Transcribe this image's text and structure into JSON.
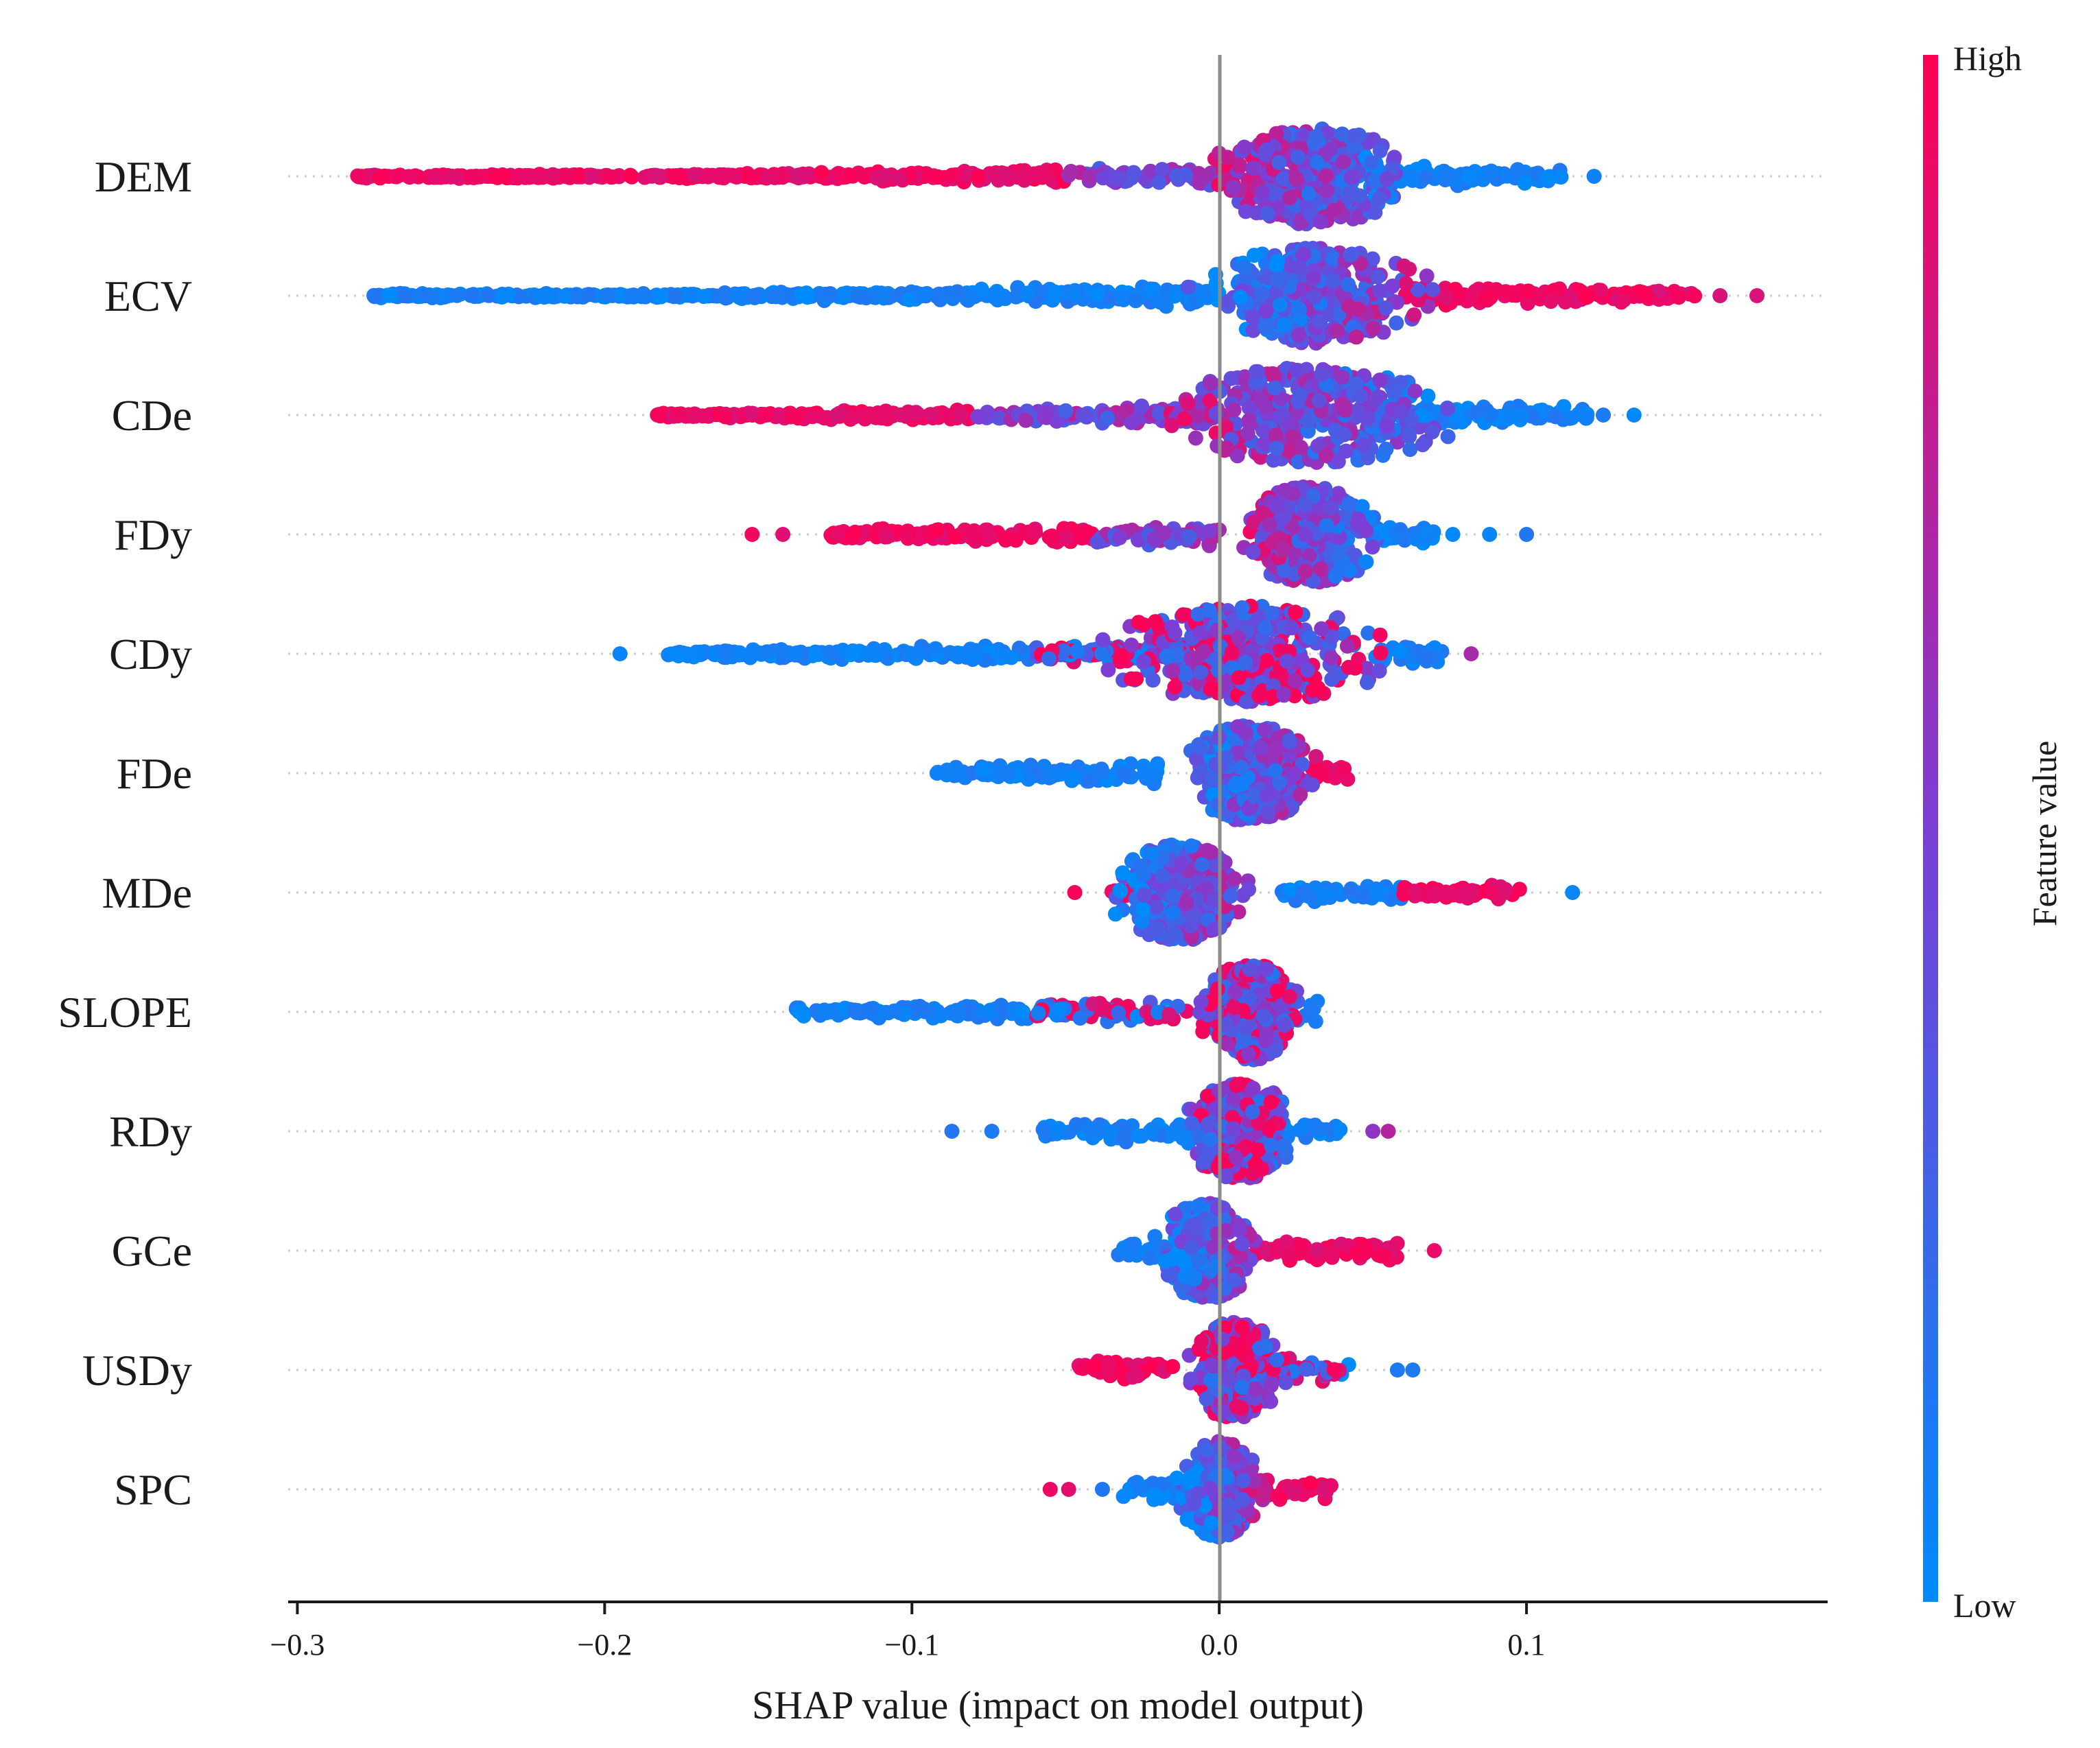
{
  "chart_data": {
    "type": "scatter",
    "subtype": "shap-beeswarm",
    "xlabel": "SHAP value (impact on model output)",
    "xlim": [
      -0.303,
      0.198
    ],
    "xticks": [
      {
        "value": -0.3,
        "label": "−0.3"
      },
      {
        "value": -0.2,
        "label": "−0.2"
      },
      {
        "value": -0.1,
        "label": "−0.1"
      },
      {
        "value": 0.0,
        "label": "0.0"
      },
      {
        "value": 0.1,
        "label": "0.1"
      }
    ],
    "colorbar": {
      "title": "Feature value",
      "high_label": "High",
      "low_label": "Low",
      "high_color": "#ff0052",
      "mid_color": "#7b3fd6",
      "low_color": "#008bfb"
    },
    "features": [
      {
        "name": "DEM",
        "min": -0.282,
        "max": 0.122,
        "center": 0.03,
        "tail_segments": [
          [
            -0.282,
            -0.05,
            "high"
          ],
          [
            -0.05,
            0.0,
            "mix"
          ],
          [
            0.04,
            0.112,
            "low"
          ]
        ],
        "outliers": [
          [
            0.122,
            "low"
          ]
        ],
        "body": [
          0.0,
          0.06
        ],
        "corr": -1
      },
      {
        "name": "ECV",
        "min": -0.278,
        "max": 0.175,
        "center": 0.03,
        "tail_segments": [
          [
            -0.278,
            -0.08,
            "low"
          ],
          [
            -0.08,
            0.0,
            "low"
          ],
          [
            0.06,
            0.155,
            "high"
          ]
        ],
        "outliers": [
          [
            0.163,
            "high"
          ],
          [
            0.175,
            "high"
          ]
        ],
        "body": [
          0.0,
          0.07
        ],
        "corr": 1
      },
      {
        "name": "CDe",
        "min": -0.183,
        "max": 0.135,
        "center": 0.03,
        "tail_segments": [
          [
            -0.183,
            -0.08,
            "high"
          ],
          [
            -0.08,
            0.0,
            "mix"
          ],
          [
            0.05,
            0.12,
            "low"
          ]
        ],
        "outliers": [
          [
            0.125,
            "low"
          ],
          [
            0.135,
            "low"
          ]
        ],
        "body": [
          -0.02,
          0.07
        ],
        "corr": -1
      },
      {
        "name": "FDy",
        "min": -0.152,
        "max": 0.1,
        "center": 0.03,
        "tail_segments": [
          [
            -0.128,
            -0.04,
            "high"
          ],
          [
            -0.04,
            0.0,
            "mix"
          ],
          [
            0.05,
            0.07,
            "low"
          ]
        ],
        "outliers": [
          [
            -0.152,
            "high"
          ],
          [
            -0.142,
            "high"
          ],
          [
            0.076,
            "low"
          ],
          [
            0.088,
            "low"
          ],
          [
            0.1,
            "low"
          ]
        ],
        "body": [
          0.01,
          0.055
        ],
        "corr": -1
      },
      {
        "name": "CDy",
        "min": -0.195,
        "max": 0.082,
        "center": 0.01,
        "tail_segments": [
          [
            -0.18,
            -0.06,
            "low"
          ],
          [
            -0.06,
            -0.01,
            "mixhi"
          ],
          [
            0.05,
            0.075,
            "low"
          ]
        ],
        "outliers": [
          [
            -0.195,
            "low"
          ],
          [
            0.082,
            "mix"
          ]
        ],
        "body": [
          -0.02,
          0.07
        ],
        "corr": 0
      },
      {
        "name": "FDe",
        "min": -0.092,
        "max": 0.042,
        "center": 0.01,
        "tail_segments": [
          [
            -0.092,
            -0.02,
            "low"
          ],
          [
            0.03,
            0.042,
            "high"
          ]
        ],
        "outliers": [],
        "body": [
          -0.01,
          0.03
        ],
        "corr": 1
      },
      {
        "name": "MDe",
        "min": -0.047,
        "max": 0.115,
        "center": -0.013,
        "tail_segments": [
          [
            -0.035,
            -0.02,
            "high"
          ],
          [
            0.02,
            0.06,
            "low"
          ],
          [
            0.06,
            0.098,
            "high"
          ]
        ],
        "outliers": [
          [
            -0.047,
            "high"
          ],
          [
            0.115,
            "low"
          ]
        ],
        "body": [
          -0.03,
          0.01
        ],
        "corr": 1
      },
      {
        "name": "SLOPE",
        "min": -0.138,
        "max": 0.032,
        "center": 0.01,
        "tail_segments": [
          [
            -0.138,
            -0.06,
            "low"
          ],
          [
            -0.06,
            -0.01,
            "mixhi"
          ],
          [
            0.02,
            0.032,
            "low"
          ]
        ],
        "outliers": [],
        "body": [
          -0.005,
          0.025
        ],
        "corr": 0
      },
      {
        "name": "RDy",
        "min": -0.087,
        "max": 0.055,
        "center": 0.007,
        "tail_segments": [
          [
            -0.058,
            -0.01,
            "low"
          ],
          [
            0.02,
            0.04,
            "low"
          ]
        ],
        "outliers": [
          [
            -0.087,
            "low"
          ],
          [
            -0.074,
            "low"
          ],
          [
            0.05,
            "mix"
          ],
          [
            0.055,
            "mix"
          ]
        ],
        "body": [
          -0.01,
          0.025
        ],
        "corr": 0
      },
      {
        "name": "GCe",
        "min": -0.033,
        "max": 0.07,
        "center": -0.004,
        "tail_segments": [
          [
            -0.033,
            -0.015,
            "low"
          ],
          [
            0.01,
            0.058,
            "high"
          ]
        ],
        "outliers": [
          [
            0.07,
            "high"
          ]
        ],
        "body": [
          -0.02,
          0.01
        ],
        "corr": 1
      },
      {
        "name": "USDy",
        "min": -0.046,
        "max": 0.063,
        "center": 0.005,
        "tail_segments": [
          [
            -0.046,
            -0.015,
            "high"
          ],
          [
            0.015,
            0.043,
            "mixhi"
          ]
        ],
        "outliers": [
          [
            0.058,
            "low"
          ],
          [
            0.063,
            "low"
          ]
        ],
        "body": [
          -0.01,
          0.02
        ],
        "corr": 0
      },
      {
        "name": "SPC",
        "min": -0.055,
        "max": 0.037,
        "center": 0.0,
        "tail_segments": [
          [
            -0.032,
            -0.01,
            "low"
          ],
          [
            0.01,
            0.037,
            "high"
          ]
        ],
        "outliers": [
          [
            -0.055,
            "high"
          ],
          [
            -0.049,
            "high"
          ],
          [
            -0.038,
            "low"
          ]
        ],
        "body": [
          -0.01,
          0.015
        ],
        "corr": 1
      }
    ]
  }
}
